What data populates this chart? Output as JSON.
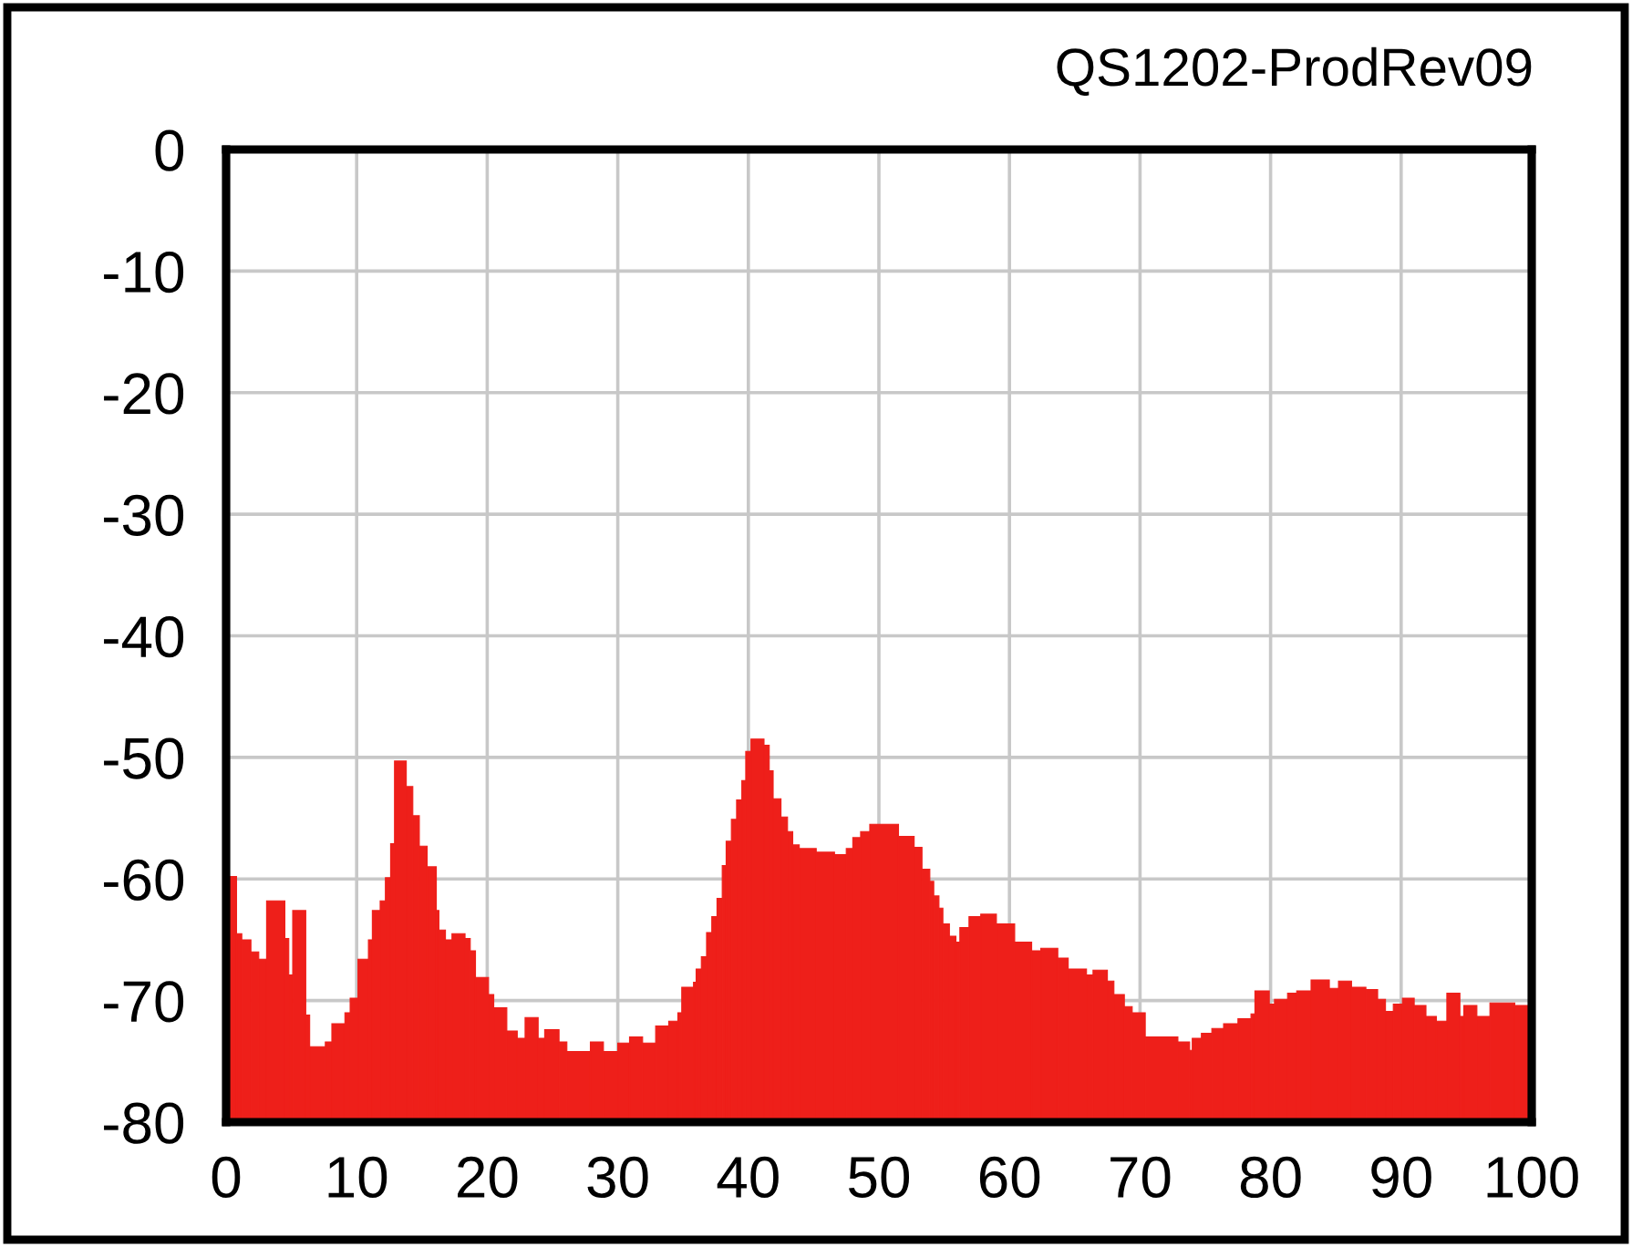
{
  "chart_data": {
    "type": "histogram",
    "title": "QS1202-ProdRev09",
    "bins": [
      0,
      0.8,
      1.2,
      1.9,
      2.5,
      3.1,
      4.5,
      4.8,
      5.1,
      6.1,
      6.4,
      7.6,
      8.1,
      9.1,
      9.5,
      10.1,
      10.9,
      11.2,
      11.8,
      12.2,
      12.6,
      12.9,
      13.8,
      14.3,
      14.8,
      15.4,
      16.1,
      16.3,
      16.8,
      17.3,
      18.3,
      18.7,
      19.1,
      20.1,
      20.5,
      21.5,
      22.3,
      22.9,
      23.9,
      24.4,
      25.5,
      26.1,
      27.9,
      28.9,
      30.0,
      30.9,
      31.9,
      32.9,
      33.9,
      34.6,
      34.9,
      35.8,
      36.0,
      36.4,
      36.8,
      37.2,
      37.6,
      38.0,
      38.3,
      38.7,
      39.1,
      39.5,
      39.8,
      40.2,
      41.2,
      41.6,
      41.9,
      42.5,
      43.0,
      43.4,
      43.9,
      45.2,
      46.6,
      47.5,
      48.0,
      48.6,
      49.3,
      51.5,
      52.7,
      53.3,
      53.9,
      54.2,
      54.6,
      54.9,
      55.4,
      55.9,
      56.2,
      56.9,
      57.8,
      59.0,
      60.4,
      61.7,
      62.4,
      63.7,
      64.5,
      65.9,
      66.4,
      67.5,
      68.0,
      68.8,
      69.4,
      70.4,
      72.9,
      73.8,
      74.0,
      74.7,
      75.5,
      76.4,
      77.5,
      78.5,
      78.8,
      79.9,
      80.3,
      81.3,
      82.0,
      83.1,
      84.5,
      85.2,
      86.2,
      87.3,
      88.2,
      88.8,
      89.4,
      90.1,
      91.0,
      91.9,
      92.7,
      93.5,
      94.5,
      94.8,
      95.8,
      96.8,
      98.7,
      100
    ],
    "values": [
      20.2,
      15.5,
      15.0,
      14.0,
      13.4,
      18.2,
      15.1,
      12.1,
      17.4,
      8.8,
      6.2,
      6.6,
      8.1,
      9.0,
      10.2,
      13.4,
      15.0,
      17.4,
      18.2,
      20.1,
      22.9,
      29.7,
      27.6,
      25.2,
      22.7,
      21.0,
      17.4,
      15.8,
      15.0,
      15.5,
      15.1,
      14.1,
      11.9,
      10.5,
      9.4,
      7.5,
      6.9,
      8.6,
      6.9,
      7.6,
      6.6,
      5.8,
      6.6,
      5.8,
      6.5,
      7.0,
      6.5,
      7.9,
      8.3,
      9.0,
      11.1,
      11.5,
      12.6,
      13.6,
      15.6,
      16.9,
      18.4,
      21.1,
      23.1,
      24.9,
      26.5,
      28.1,
      30.5,
      31.5,
      31.0,
      28.9,
      26.6,
      25.1,
      23.9,
      22.8,
      22.5,
      22.2,
      22.0,
      22.5,
      23.4,
      23.9,
      24.5,
      23.5,
      22.6,
      20.8,
      19.8,
      18.6,
      17.6,
      16.3,
      15.3,
      14.8,
      16.0,
      16.9,
      17.1,
      16.3,
      14.8,
      14.1,
      14.3,
      13.5,
      12.6,
      12.1,
      12.5,
      11.6,
      10.5,
      9.5,
      9.0,
      7.0,
      6.6,
      5.9,
      6.9,
      7.3,
      7.7,
      8.1,
      8.5,
      8.9,
      10.8,
      9.7,
      10.1,
      10.6,
      10.8,
      11.7,
      11.0,
      11.6,
      11.1,
      10.9,
      10.1,
      9.1,
      9.7,
      10.2,
      9.6,
      8.7,
      8.3,
      10.6,
      8.7,
      9.6,
      8.7,
      9.8,
      9.6
    ],
    "base": [
      -80,
      -80,
      -80,
      -80,
      -80,
      -80,
      -80,
      -80,
      -80,
      -80,
      -80,
      -80,
      -80,
      -80,
      -80,
      -80,
      -80,
      -80,
      -80,
      -80,
      -80,
      -80,
      -80,
      -80,
      -80,
      -80,
      -80,
      -80,
      -80,
      -80,
      -80,
      -80,
      -80,
      -80,
      -80,
      -80,
      -80,
      -80,
      -80,
      -80,
      -80,
      -80,
      -80,
      -80,
      -80,
      -80,
      -80,
      -80,
      -80,
      -80,
      -80,
      -80,
      -80,
      -80,
      -80,
      -80,
      -80,
      -80,
      -80,
      -80,
      -80,
      -80,
      -80,
      -80,
      -80,
      -80,
      -80,
      -80,
      -80,
      -80,
      -80,
      -80,
      -80,
      -80,
      -80,
      -80,
      -80,
      -80,
      -80,
      -80,
      -80,
      -80,
      -80,
      -80,
      -80,
      -80,
      -80,
      -80,
      -80,
      -80,
      -80,
      -80,
      -80,
      -80,
      -80,
      -80,
      -80,
      -80,
      -80,
      -80,
      -80,
      -80,
      -80,
      -80,
      -80,
      -80,
      -80,
      -80,
      -80,
      -80,
      -80,
      -80,
      -80,
      -80,
      -80,
      -80,
      -80,
      -80,
      -80,
      -80,
      -80,
      -80,
      -80,
      -80,
      -80,
      -80,
      -80,
      -80,
      -80,
      -80,
      -80,
      -80,
      -80
    ],
    "color": "#ee1f1a",
    "xlim": [
      0,
      100
    ],
    "ylim": [
      -80,
      0
    ],
    "xticks": [
      0,
      10,
      20,
      30,
      40,
      50,
      60,
      70,
      80,
      90,
      100
    ],
    "yticks": [
      -80,
      -70,
      -60,
      -50,
      -40,
      -30,
      -20,
      -10,
      0
    ],
    "grid": true
  }
}
